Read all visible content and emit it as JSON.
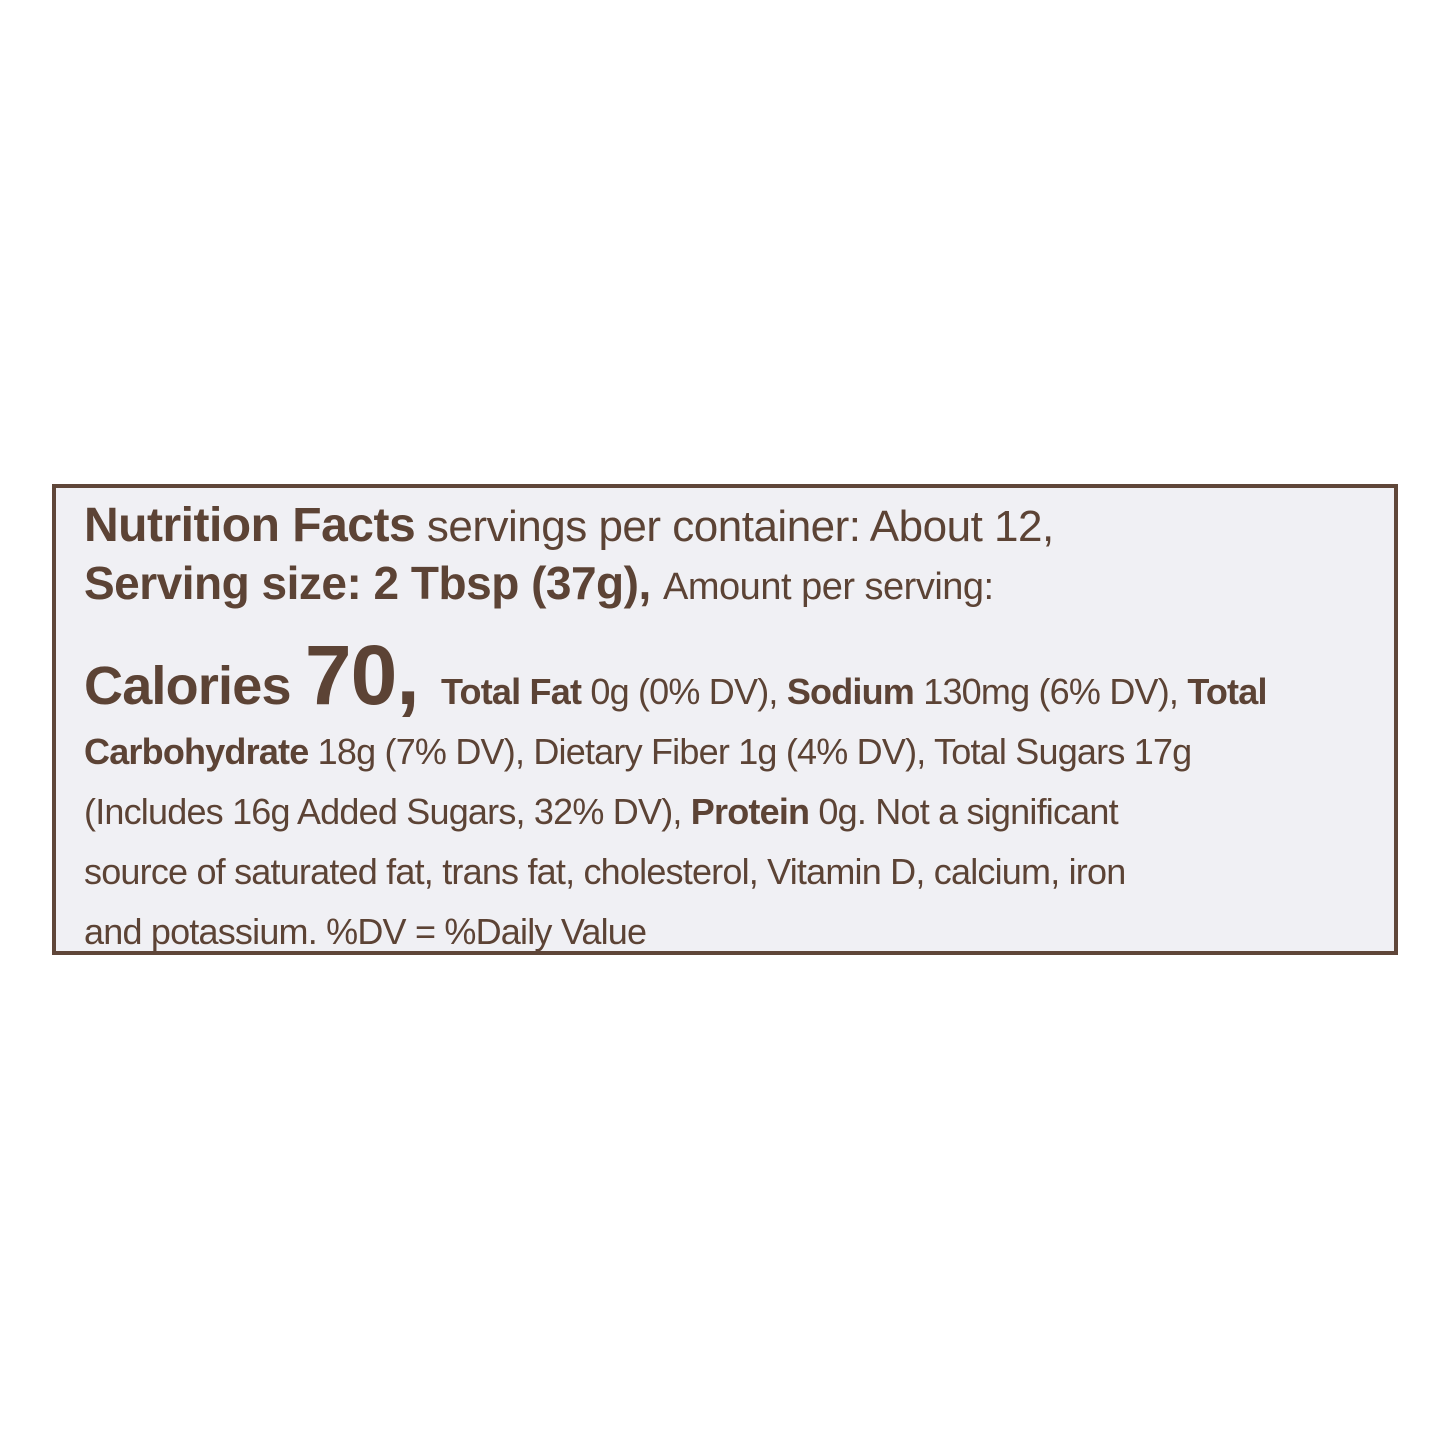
{
  "colors": {
    "page_background": "#ffffff",
    "label_background": "#f0f0f4",
    "label_border": "#5f4639",
    "text": "#5c4335"
  },
  "label": {
    "header": {
      "title": "Nutrition Facts",
      "servings_per_container": " servings per container: About 12,",
      "serving_size": "Serving size: 2 Tbsp (37g), ",
      "amount_per_serving": "Amount per serving:"
    },
    "nutrition": {
      "calories_label": "Calories ",
      "calories_value": "70, ",
      "total_fat_label": "Total Fat ",
      "total_fat_value": "0g (0% DV), ",
      "sodium_label": "Sodium ",
      "sodium_value": "130mg (6% DV), ",
      "total_carbohydrate_label_word1": "Total",
      "total_carbohydrate_label_word2": "Carbohydrate ",
      "total_carbohydrate_value": "18g (7% DV), ",
      "dietary_fiber": "Dietary Fiber 1g (4% DV), ",
      "total_sugars": "Total Sugars 17g",
      "added_sugars": "(Includes 16g Added Sugars, 32% DV), ",
      "protein_label": "Protein ",
      "protein_value": "0g. ",
      "disclaimer_part1": "Not a significant",
      "disclaimer_part2": "source of saturated fat, trans fat, cholesterol, Vitamin D, calcium, iron",
      "disclaimer_part3": "and potassium. %DV = %Daily Value"
    }
  }
}
